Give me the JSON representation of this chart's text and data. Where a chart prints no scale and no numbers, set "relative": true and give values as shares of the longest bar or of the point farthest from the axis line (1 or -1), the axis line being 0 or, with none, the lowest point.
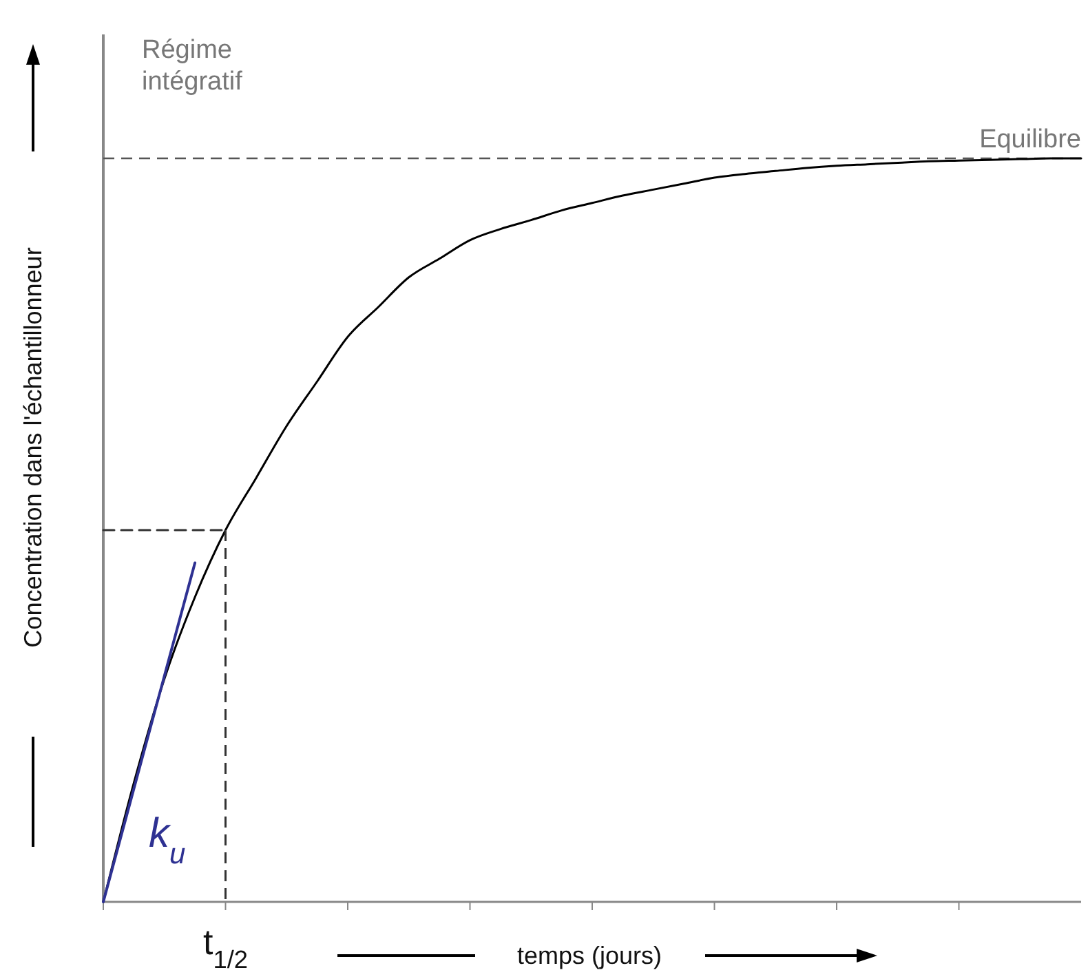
{
  "chart_data": {
    "type": "line",
    "relative": true,
    "xlabel": "temps (jours)",
    "ylabel": "Concentration dans l'échantillonneur",
    "categories": [
      null,
      null,
      null,
      null,
      null,
      null,
      null,
      null,
      null,
      null,
      null,
      null,
      null,
      null,
      null,
      null,
      null,
      null,
      null,
      null,
      null,
      null,
      null,
      null,
      null,
      null,
      null,
      null,
      null,
      null,
      null,
      null,
      null
    ],
    "series": [
      {
        "color": "#000000",
        "values": [
          0,
          0.16,
          0.3,
          0.41,
          0.5,
          0.57,
          0.64,
          0.7,
          0.76,
          0.8,
          0.84,
          0.865,
          0.89,
          0.905,
          0.917,
          0.93,
          0.94,
          0.95,
          0.958,
          0.966,
          0.974,
          0.979,
          0.983,
          0.987,
          0.99,
          0.992,
          0.994,
          0.996,
          0.997,
          0.998,
          0.999,
          1,
          1
        ]
      },
      {
        "name": "k$_{u}$",
        "color": "#2e3192",
        "values": [
          0,
          0.152,
          0.304,
          0.456,
          null,
          null,
          null,
          null,
          null,
          null,
          null,
          null,
          null,
          null,
          null,
          null,
          null,
          null,
          null,
          null,
          null,
          null,
          null,
          null,
          null,
          null,
          null,
          null,
          null,
          null,
          null,
          null,
          null
        ]
      },
      {
        "color": "#333333",
        "line_style": "dashed",
        "values": [
          0.5,
          0.5,
          0.5,
          0.5,
          0.5,
          null,
          null,
          null,
          null,
          null,
          null,
          null,
          null,
          null,
          null,
          null,
          null,
          null,
          null,
          null,
          null,
          null,
          null,
          null,
          null,
          null,
          null,
          null,
          null,
          null,
          null,
          null,
          null
        ]
      }
    ],
    "ref_lines": [
      {
        "axis": "y",
        "value": 1,
        "color": "#555555",
        "line_style": "dashed"
      }
    ],
    "annotations": [
      "Régime\nintégratif",
      "Equilibre",
      "t$_{1/2}$"
    ],
    "legend": false,
    "grid": false,
    "marker": "none"
  }
}
